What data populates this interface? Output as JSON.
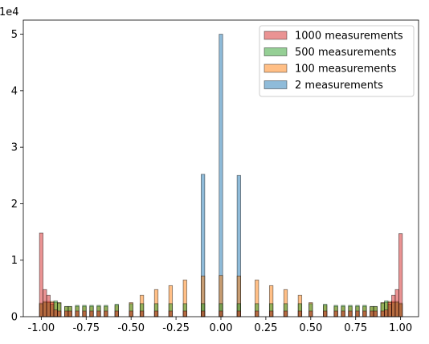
{
  "chart_data": {
    "type": "bar",
    "subtype": "overlaid-histogram",
    "x_range": [
      -1.0,
      1.0
    ],
    "bin_count": 100,
    "xlim": [
      -1.1,
      1.1
    ],
    "ylim": [
      0,
      5.25
    ],
    "y_offset_text": "1e4",
    "xticks": [
      "-1.00",
      "-0.75",
      "-0.50",
      "-0.25",
      "0.00",
      "0.25",
      "0.50",
      "0.75",
      "1.00"
    ],
    "xtick_values": [
      -1.0,
      -0.75,
      -0.5,
      -0.25,
      0.0,
      0.25,
      0.5,
      0.75,
      1.0
    ],
    "yticks": [
      "0",
      "1",
      "2",
      "3",
      "4",
      "5"
    ],
    "ytick_values": [
      0,
      1,
      2,
      3,
      4,
      5
    ],
    "legend_position": "upper-right",
    "series": [
      {
        "name": "2 measurements",
        "color": "#1f77b4",
        "bins": [
          {
            "x": -0.1,
            "value": 2.52
          },
          {
            "x": 0.0,
            "value": 5.0
          },
          {
            "x": 0.1,
            "value": 2.5
          }
        ]
      },
      {
        "name": "100 measurements",
        "color": "#ff7f0e",
        "bins": [
          {
            "x": -1.0,
            "value": 0.22
          },
          {
            "x": -0.98,
            "value": 0.25
          },
          {
            "x": -0.96,
            "value": 0.27
          },
          {
            "x": -0.94,
            "value": 0.27
          },
          {
            "x": -0.92,
            "value": 0.25
          },
          {
            "x": -0.9,
            "value": 0.25
          },
          {
            "x": -0.86,
            "value": 0.18
          },
          {
            "x": -0.84,
            "value": 0.18
          },
          {
            "x": -0.8,
            "value": 0.18
          },
          {
            "x": -0.76,
            "value": 0.18
          },
          {
            "x": -0.72,
            "value": 0.18
          },
          {
            "x": -0.68,
            "value": 0.18
          },
          {
            "x": -0.64,
            "value": 0.18
          },
          {
            "x": -0.58,
            "value": 0.2
          },
          {
            "x": -0.5,
            "value": 0.25
          },
          {
            "x": -0.44,
            "value": 0.38
          },
          {
            "x": -0.36,
            "value": 0.48
          },
          {
            "x": -0.28,
            "value": 0.55
          },
          {
            "x": -0.2,
            "value": 0.65
          },
          {
            "x": -0.1,
            "value": 0.72
          },
          {
            "x": 0.0,
            "value": 0.73
          },
          {
            "x": 0.1,
            "value": 0.72
          },
          {
            "x": 0.2,
            "value": 0.65
          },
          {
            "x": 0.28,
            "value": 0.55
          },
          {
            "x": 0.36,
            "value": 0.48
          },
          {
            "x": 0.44,
            "value": 0.38
          },
          {
            "x": 0.5,
            "value": 0.25
          },
          {
            "x": 0.58,
            "value": 0.2
          },
          {
            "x": 0.64,
            "value": 0.18
          },
          {
            "x": 0.68,
            "value": 0.18
          },
          {
            "x": 0.72,
            "value": 0.18
          },
          {
            "x": 0.76,
            "value": 0.18
          },
          {
            "x": 0.8,
            "value": 0.18
          },
          {
            "x": 0.84,
            "value": 0.18
          },
          {
            "x": 0.86,
            "value": 0.18
          },
          {
            "x": 0.9,
            "value": 0.25
          },
          {
            "x": 0.92,
            "value": 0.25
          },
          {
            "x": 0.94,
            "value": 0.27
          },
          {
            "x": 0.96,
            "value": 0.27
          },
          {
            "x": 0.98,
            "value": 0.25
          },
          {
            "x": 1.0,
            "value": 0.22
          }
        ]
      },
      {
        "name": "500 measurements",
        "color": "#2ca02c",
        "bins": [
          {
            "x": -1.0,
            "value": 0.24
          },
          {
            "x": -0.98,
            "value": 0.27
          },
          {
            "x": -0.96,
            "value": 0.25
          },
          {
            "x": -0.94,
            "value": 0.22
          },
          {
            "x": -0.92,
            "value": 0.28
          },
          {
            "x": -0.9,
            "value": 0.24
          },
          {
            "x": -0.86,
            "value": 0.18
          },
          {
            "x": -0.84,
            "value": 0.18
          },
          {
            "x": -0.8,
            "value": 0.2
          },
          {
            "x": -0.76,
            "value": 0.2
          },
          {
            "x": -0.72,
            "value": 0.2
          },
          {
            "x": -0.68,
            "value": 0.2
          },
          {
            "x": -0.64,
            "value": 0.2
          },
          {
            "x": -0.58,
            "value": 0.22
          },
          {
            "x": -0.5,
            "value": 0.23
          },
          {
            "x": -0.44,
            "value": 0.23
          },
          {
            "x": -0.36,
            "value": 0.23
          },
          {
            "x": -0.28,
            "value": 0.23
          },
          {
            "x": -0.2,
            "value": 0.23
          },
          {
            "x": -0.1,
            "value": 0.23
          },
          {
            "x": 0.0,
            "value": 0.23
          },
          {
            "x": 0.1,
            "value": 0.23
          },
          {
            "x": 0.2,
            "value": 0.23
          },
          {
            "x": 0.28,
            "value": 0.23
          },
          {
            "x": 0.36,
            "value": 0.23
          },
          {
            "x": 0.44,
            "value": 0.23
          },
          {
            "x": 0.5,
            "value": 0.23
          },
          {
            "x": 0.58,
            "value": 0.22
          },
          {
            "x": 0.64,
            "value": 0.2
          },
          {
            "x": 0.68,
            "value": 0.2
          },
          {
            "x": 0.72,
            "value": 0.2
          },
          {
            "x": 0.76,
            "value": 0.2
          },
          {
            "x": 0.8,
            "value": 0.2
          },
          {
            "x": 0.84,
            "value": 0.18
          },
          {
            "x": 0.86,
            "value": 0.18
          },
          {
            "x": 0.9,
            "value": 0.24
          },
          {
            "x": 0.92,
            "value": 0.28
          },
          {
            "x": 0.94,
            "value": 0.22
          },
          {
            "x": 0.96,
            "value": 0.25
          },
          {
            "x": 0.98,
            "value": 0.27
          },
          {
            "x": 1.0,
            "value": 0.24
          }
        ]
      },
      {
        "name": "1000 measurements",
        "color": "#d62728",
        "bins": [
          {
            "x": -1.0,
            "value": 1.48
          },
          {
            "x": -0.98,
            "value": 0.48
          },
          {
            "x": -0.96,
            "value": 0.38
          },
          {
            "x": -0.94,
            "value": 0.25
          },
          {
            "x": -0.92,
            "value": 0.12
          },
          {
            "x": -0.9,
            "value": 0.1
          },
          {
            "x": -0.86,
            "value": 0.1
          },
          {
            "x": -0.84,
            "value": 0.1
          },
          {
            "x": -0.8,
            "value": 0.1
          },
          {
            "x": -0.76,
            "value": 0.1
          },
          {
            "x": -0.72,
            "value": 0.1
          },
          {
            "x": -0.68,
            "value": 0.1
          },
          {
            "x": -0.64,
            "value": 0.1
          },
          {
            "x": -0.58,
            "value": 0.1
          },
          {
            "x": -0.5,
            "value": 0.1
          },
          {
            "x": -0.44,
            "value": 0.1
          },
          {
            "x": -0.36,
            "value": 0.1
          },
          {
            "x": -0.28,
            "value": 0.1
          },
          {
            "x": -0.2,
            "value": 0.1
          },
          {
            "x": -0.1,
            "value": 0.1
          },
          {
            "x": 0.0,
            "value": 0.1
          },
          {
            "x": 0.1,
            "value": 0.1
          },
          {
            "x": 0.2,
            "value": 0.1
          },
          {
            "x": 0.28,
            "value": 0.1
          },
          {
            "x": 0.36,
            "value": 0.1
          },
          {
            "x": 0.44,
            "value": 0.1
          },
          {
            "x": 0.5,
            "value": 0.1
          },
          {
            "x": 0.58,
            "value": 0.1
          },
          {
            "x": 0.64,
            "value": 0.1
          },
          {
            "x": 0.68,
            "value": 0.1
          },
          {
            "x": 0.72,
            "value": 0.1
          },
          {
            "x": 0.76,
            "value": 0.1
          },
          {
            "x": 0.8,
            "value": 0.1
          },
          {
            "x": 0.84,
            "value": 0.1
          },
          {
            "x": 0.86,
            "value": 0.1
          },
          {
            "x": 0.9,
            "value": 0.1
          },
          {
            "x": 0.92,
            "value": 0.12
          },
          {
            "x": 0.94,
            "value": 0.25
          },
          {
            "x": 0.96,
            "value": 0.38
          },
          {
            "x": 0.98,
            "value": 0.48
          },
          {
            "x": 1.0,
            "value": 1.47
          }
        ]
      }
    ],
    "legend": [
      {
        "name": "1000 measurements",
        "color": "#d62728"
      },
      {
        "name": "500 measurements",
        "color": "#2ca02c"
      },
      {
        "name": "100 measurements",
        "color": "#ff7f0e"
      },
      {
        "name": "2 measurements",
        "color": "#1f77b4"
      }
    ]
  }
}
